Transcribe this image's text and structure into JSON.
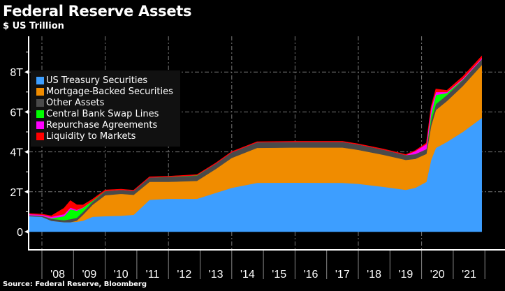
{
  "title": "Federal Reserve Assets",
  "subtitle": "$ US Trillion",
  "source": "Source: Federal Reserve, Bloomberg",
  "chart_data": {
    "type": "area",
    "stacked": true,
    "title": "Federal Reserve Assets",
    "ylabel": "$ US Trillion",
    "ylim": [
      0,
      9.5
    ],
    "xlim": [
      2007.5,
      2022.0
    ],
    "yticks": [
      {
        "v": 0,
        "label": "0"
      },
      {
        "v": 2,
        "label": "2T"
      },
      {
        "v": 4,
        "label": "4T"
      },
      {
        "v": 6,
        "label": "6T"
      },
      {
        "v": 8,
        "label": "8T"
      }
    ],
    "xtick_labels": [
      "'08",
      "'09",
      "'10",
      "'11",
      "'12",
      "'13",
      "'14",
      "'15",
      "'16",
      "'17",
      "'18",
      "'19",
      "'20",
      "'21"
    ],
    "grid": true,
    "legend_placement": "top-left",
    "x": [
      2007.6,
      2008.0,
      2008.3,
      2008.7,
      2008.9,
      2009.1,
      2009.3,
      2009.6,
      2010.0,
      2010.5,
      2010.9,
      2011.4,
      2012.0,
      2012.9,
      2013.5,
      2014.0,
      2014.8,
      2016.0,
      2017.5,
      2018.0,
      2018.8,
      2019.5,
      2019.8,
      2020.15,
      2020.3,
      2020.45,
      2020.8,
      2021.3,
      2021.9
    ],
    "series": [
      {
        "name": "US Treasury Securities",
        "color": "#3d9eff",
        "values": [
          0.78,
          0.75,
          0.55,
          0.48,
          0.48,
          0.5,
          0.55,
          0.75,
          0.78,
          0.8,
          0.85,
          1.6,
          1.65,
          1.65,
          1.95,
          2.2,
          2.45,
          2.46,
          2.45,
          2.4,
          2.25,
          2.1,
          2.2,
          2.5,
          3.6,
          4.2,
          4.5,
          5.0,
          5.7
        ]
      },
      {
        "name": "Mortgage-Backed Securities",
        "color": "#f08c00",
        "values": [
          0,
          0,
          0,
          0,
          0,
          0.05,
          0.3,
          0.6,
          1.05,
          1.1,
          1.0,
          0.9,
          0.85,
          0.9,
          1.2,
          1.5,
          1.75,
          1.76,
          1.77,
          1.7,
          1.6,
          1.5,
          1.45,
          1.4,
          1.7,
          1.9,
          2.05,
          2.3,
          2.65
        ]
      },
      {
        "name": "Other Assets",
        "color": "#4a4a4a",
        "values": [
          0.05,
          0.05,
          0.1,
          0.1,
          0.15,
          0.15,
          0.15,
          0.15,
          0.2,
          0.2,
          0.2,
          0.22,
          0.24,
          0.26,
          0.27,
          0.28,
          0.28,
          0.28,
          0.28,
          0.27,
          0.26,
          0.24,
          0.24,
          0.24,
          0.28,
          0.3,
          0.3,
          0.3,
          0.3
        ]
      },
      {
        "name": "Central Bank Swap Lines",
        "color": "#00ff00",
        "values": [
          0,
          0,
          0.02,
          0.2,
          0.5,
          0.35,
          0.2,
          0.05,
          0.01,
          0,
          0,
          0,
          0.01,
          0.02,
          0,
          0,
          0,
          0,
          0,
          0,
          0,
          0,
          0,
          0,
          0.3,
          0.45,
          0.1,
          0.02,
          0
        ]
      },
      {
        "name": "Repurchase Agreements",
        "color": "#ff00ff",
        "values": [
          0.05,
          0.05,
          0.08,
          0.1,
          0.08,
          0.05,
          0.02,
          0,
          0,
          0,
          0,
          0,
          0,
          0,
          0,
          0,
          0,
          0,
          0,
          0,
          0,
          0,
          0.15,
          0.25,
          0.3,
          0.15,
          0.05,
          0.05,
          0.05
        ]
      },
      {
        "name": "Liquidity to Markets",
        "color": "#ff0000",
        "values": [
          0.03,
          0.03,
          0.05,
          0.3,
          0.35,
          0.25,
          0.12,
          0.08,
          0.05,
          0.03,
          0.03,
          0.03,
          0.03,
          0.03,
          0.03,
          0.03,
          0.03,
          0.03,
          0.03,
          0.03,
          0.03,
          0.03,
          0.03,
          0.05,
          0.1,
          0.15,
          0.08,
          0.1,
          0.1
        ]
      }
    ]
  }
}
